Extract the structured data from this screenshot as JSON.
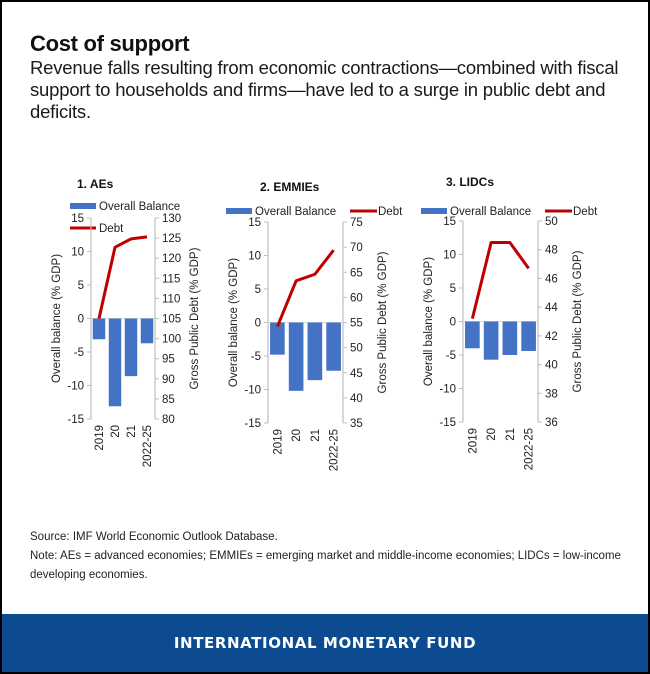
{
  "header": {
    "title": "Cost of support",
    "subtitle": "Revenue falls resulting from economic contractions—combined with fiscal support to households and firms—have led to a surge in public debt and deficits."
  },
  "colors": {
    "bar": "#4472c4",
    "line": "#c00000",
    "footer_bg": "#0c4b8f",
    "axis": "#bfbfbf"
  },
  "chart_data": [
    {
      "type": "bar+line",
      "title": "1. AEs",
      "categories": [
        "2019",
        "20",
        "21",
        "2022-25"
      ],
      "series": [
        {
          "name": "Overall Balance",
          "type": "bar",
          "axis": "left",
          "values": [
            -3.1,
            -13.1,
            -8.6,
            -3.7
          ]
        },
        {
          "name": "Debt",
          "type": "line",
          "axis": "right",
          "values": [
            105.0,
            122.7,
            124.8,
            125.3
          ]
        }
      ],
      "ylabel": "Overall balance (% GDP)",
      "y2label": "Gross Public Debt (% GDP)",
      "ylim": [
        -15,
        15
      ],
      "yticks": [
        "15",
        "10",
        "5",
        "0",
        "-5",
        "-10",
        "-15"
      ],
      "y2lim": [
        80,
        130
      ],
      "y2ticks": [
        "130",
        "125",
        "120",
        "115",
        "110",
        "105",
        "100",
        "95",
        "90",
        "85",
        "80"
      ],
      "legend": "top, stacked",
      "grid": false
    },
    {
      "type": "bar+line",
      "title": "2. EMMIEs",
      "categories": [
        "2019",
        "20",
        "21",
        "2022-25"
      ],
      "series": [
        {
          "name": "Overall Balance",
          "type": "bar",
          "axis": "left",
          "values": [
            -4.8,
            -10.2,
            -8.6,
            -7.2
          ]
        },
        {
          "name": "Debt",
          "type": "line",
          "axis": "right",
          "values": [
            54.2,
            63.3,
            64.6,
            69.4
          ]
        }
      ],
      "ylabel": "Overall balance (% GDP)",
      "y2label": "Gross Public Debt (% GDP)",
      "ylim": [
        -15,
        15
      ],
      "yticks": [
        "15",
        "10",
        "5",
        "0",
        "-5",
        "-10",
        "-15"
      ],
      "y2lim": [
        35,
        75
      ],
      "y2ticks": [
        "75",
        "70",
        "65",
        "60",
        "55",
        "50",
        "45",
        "40",
        "35"
      ],
      "legend": "top",
      "grid": false
    },
    {
      "type": "bar+line",
      "title": "3. LIDCs",
      "categories": [
        "2019",
        "20",
        "21",
        "2022-25"
      ],
      "series": [
        {
          "name": "Overall Balance",
          "type": "bar",
          "axis": "left",
          "values": [
            -4.0,
            -5.7,
            -5.0,
            -4.4
          ]
        },
        {
          "name": "Debt",
          "type": "line",
          "axis": "right",
          "values": [
            43.2,
            48.5,
            48.5,
            46.7
          ]
        }
      ],
      "ylabel": "Overall balance (% GDP)",
      "y2label": "Gross Public Debt (% GDP)",
      "ylim": [
        -15,
        15
      ],
      "yticks": [
        "15",
        "10",
        "5",
        "0",
        "-5",
        "-10",
        "-15"
      ],
      "y2lim": [
        36,
        50
      ],
      "y2ticks": [
        "50",
        "48",
        "46",
        "44",
        "42",
        "40",
        "38",
        "36"
      ],
      "legend": "top",
      "grid": false
    }
  ],
  "notes": {
    "source": "Source: IMF World Economic Outlook Database.",
    "note": "Note: AEs = advanced economies; EMMIEs = emerging market and middle-income economies; LIDCs = low-income developing economies."
  },
  "footer": {
    "label": "INTERNATIONAL MONETARY FUND"
  }
}
